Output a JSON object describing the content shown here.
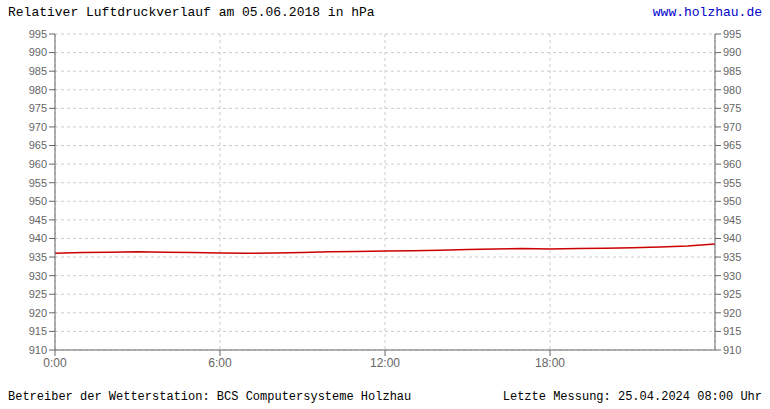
{
  "chart_data": {
    "type": "line",
    "title": "Relativer Luftdruckverlauf am 05.06.2018 in hPa",
    "annotations": [
      "www.holzhau.de",
      "Betreiber der Wetterstation: BCS Computersysteme Holzhau",
      "Letzte Messung: 25.04.2024 08:00 Uhr"
    ],
    "x": [
      0,
      60,
      120,
      180,
      240,
      300,
      360,
      420,
      480,
      540,
      600,
      660,
      720,
      780,
      840,
      900,
      960,
      1020,
      1080,
      1140,
      1200,
      1260,
      1320,
      1380,
      1440
    ],
    "values": [
      936.0,
      936.2,
      936.3,
      936.4,
      936.3,
      936.2,
      936.1,
      936.0,
      936.1,
      936.2,
      936.4,
      936.5,
      936.6,
      936.7,
      936.8,
      937.0,
      937.2,
      937.3,
      937.2,
      937.3,
      937.4,
      937.5,
      937.7,
      938.0,
      938.5
    ],
    "color": "#cc0000",
    "xlim": [
      0,
      1440
    ],
    "xticks": [
      {
        "value": 0,
        "label": "0:00"
      },
      {
        "value": 360,
        "label": "6:00"
      },
      {
        "value": 720,
        "label": "12:00"
      },
      {
        "value": 1080,
        "label": "18:00"
      }
    ],
    "ylim": [
      910,
      995
    ],
    "yticks": [
      910,
      915,
      920,
      925,
      930,
      935,
      940,
      945,
      950,
      955,
      960,
      965,
      970,
      975,
      980,
      985,
      990,
      995
    ],
    "y2lim": [
      910,
      995
    ],
    "y2ticks": [
      910,
      915,
      920,
      925,
      930,
      935,
      940,
      945,
      950,
      955,
      960,
      965,
      970,
      975,
      980,
      985,
      990,
      995
    ],
    "grid": true
  }
}
